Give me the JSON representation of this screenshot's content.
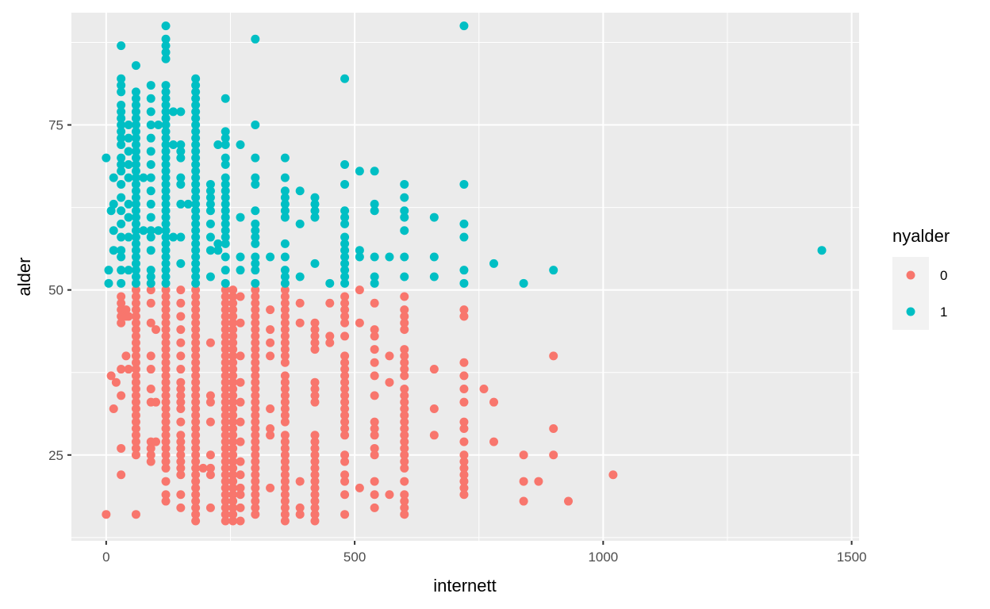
{
  "chart_data": {
    "type": "scatter",
    "title": "",
    "xlabel": "internett",
    "ylabel": "alder",
    "xlim": [
      -70,
      1515
    ],
    "ylim": [
      12,
      92
    ],
    "x_ticks": [
      0,
      500,
      1000,
      1500
    ],
    "y_ticks": [
      25,
      50,
      75
    ],
    "x_tick_labels": [
      "0",
      "500",
      "1000",
      "1500"
    ],
    "y_tick_labels": [
      "25",
      "50",
      "75"
    ],
    "grid": true,
    "legend": {
      "title": "nyalder",
      "position": "right",
      "entries": [
        {
          "label": "0",
          "color": "#F8766D"
        },
        {
          "label": "1",
          "color": "#00BFC4"
        }
      ]
    },
    "series": [
      {
        "name": "0",
        "color": "#F8766D",
        "columns": [
          [
            0,
            [
              16
            ]
          ],
          [
            10,
            [
              37
            ]
          ],
          [
            15,
            [
              32
            ]
          ],
          [
            20,
            [
              36
            ]
          ],
          [
            30,
            [
              22,
              26,
              34,
              38,
              45,
              46,
              47,
              48,
              49
            ]
          ],
          [
            40,
            [
              40,
              46,
              47
            ]
          ],
          [
            45,
            [
              38,
              46
            ]
          ],
          [
            60,
            [
              16,
              25,
              26,
              27,
              28,
              29,
              30,
              31,
              32,
              33,
              34,
              35,
              36,
              37,
              38,
              39,
              40,
              41,
              42,
              43,
              44,
              45,
              46,
              47,
              48,
              49,
              50
            ]
          ],
          [
            90,
            [
              24,
              25,
              26,
              27,
              33,
              35,
              38,
              40,
              45,
              48,
              50
            ]
          ],
          [
            100,
            [
              27,
              33,
              44
            ]
          ],
          [
            120,
            [
              18,
              19,
              21,
              23,
              24,
              25,
              26,
              27,
              28,
              29,
              30,
              31,
              32,
              33,
              34,
              35,
              36,
              37,
              38,
              39,
              40,
              41,
              42,
              43,
              44,
              45,
              46,
              47,
              48,
              49,
              50
            ]
          ],
          [
            150,
            [
              17,
              19,
              22,
              23,
              24,
              25,
              26,
              27,
              28,
              30,
              32,
              33,
              34,
              35,
              36,
              38,
              40,
              42,
              44,
              46,
              48,
              50
            ]
          ],
          [
            180,
            [
              15,
              16,
              17,
              18,
              19,
              20,
              21,
              22,
              23,
              24,
              25,
              26,
              27,
              28,
              29,
              30,
              31,
              32,
              33,
              34,
              35,
              36,
              37,
              38,
              39,
              40,
              41,
              42,
              43,
              44,
              45,
              46,
              47,
              48,
              49,
              50
            ]
          ],
          [
            195,
            [
              23
            ]
          ],
          [
            210,
            [
              17,
              22,
              23,
              25,
              30,
              33,
              34,
              42
            ]
          ],
          [
            240,
            [
              15,
              16,
              17,
              18,
              19,
              20,
              21,
              22,
              23,
              24,
              25,
              26,
              27,
              28,
              29,
              30,
              31,
              32,
              33,
              34,
              35,
              36,
              37,
              38,
              39,
              40,
              41,
              42,
              43,
              44,
              45,
              46,
              47,
              48,
              49,
              50
            ]
          ],
          [
            255,
            [
              15,
              16,
              17,
              18,
              19,
              20,
              21,
              22,
              23,
              24,
              25,
              26,
              27,
              28,
              29,
              30,
              31,
              32,
              33,
              34,
              35,
              36,
              37,
              38,
              39,
              40,
              41,
              42,
              43,
              44,
              45,
              46,
              47,
              48,
              49,
              50
            ]
          ],
          [
            270,
            [
              15,
              17,
              19,
              20,
              22,
              24,
              27,
              30,
              33,
              36,
              40,
              45,
              49
            ]
          ],
          [
            300,
            [
              16,
              17,
              18,
              19,
              20,
              21,
              22,
              23,
              24,
              25,
              26,
              27,
              28,
              29,
              30,
              31,
              32,
              33,
              34,
              35,
              36,
              37,
              38,
              39,
              40,
              41,
              42,
              43,
              44,
              45,
              46,
              47,
              48,
              49,
              50
            ]
          ],
          [
            330,
            [
              20,
              28,
              29,
              32,
              40,
              42,
              44,
              47
            ]
          ],
          [
            360,
            [
              15,
              16,
              17,
              18,
              19,
              20,
              21,
              22,
              23,
              24,
              25,
              26,
              27,
              28,
              30,
              31,
              32,
              33,
              34,
              35,
              36,
              37,
              39,
              40,
              41,
              42,
              43,
              44,
              45,
              46,
              47,
              48,
              49,
              50
            ]
          ],
          [
            390,
            [
              16,
              17,
              21,
              45,
              48
            ]
          ],
          [
            420,
            [
              15,
              16,
              17,
              18,
              19,
              20,
              21,
              22,
              23,
              24,
              25,
              26,
              27,
              28,
              33,
              34,
              35,
              36,
              41,
              42,
              43,
              44,
              45
            ]
          ],
          [
            450,
            [
              42,
              43,
              48
            ]
          ],
          [
            480,
            [
              16,
              19,
              21,
              22,
              24,
              25,
              28,
              29,
              30,
              31,
              32,
              33,
              34,
              35,
              36,
              37,
              38,
              39,
              40,
              43,
              45,
              46,
              47,
              48,
              49
            ]
          ],
          [
            510,
            [
              20,
              45,
              50
            ]
          ],
          [
            540,
            [
              17,
              19,
              21,
              25,
              26,
              28,
              29,
              30,
              34,
              37,
              39,
              41,
              43,
              44,
              48
            ]
          ],
          [
            570,
            [
              19,
              36,
              40
            ]
          ],
          [
            600,
            [
              16,
              17,
              18,
              19,
              21,
              23,
              24,
              25,
              26,
              27,
              28,
              29,
              30,
              31,
              32,
              33,
              34,
              35,
              37,
              38,
              39,
              40,
              41,
              44,
              45,
              46,
              47,
              49
            ]
          ],
          [
            660,
            [
              28,
              32,
              38
            ]
          ],
          [
            720,
            [
              19,
              20,
              21,
              22,
              23,
              24,
              25,
              27,
              29,
              30,
              33,
              35,
              37,
              39,
              46,
              47
            ]
          ],
          [
            760,
            [
              35
            ]
          ],
          [
            780,
            [
              27,
              33
            ]
          ],
          [
            840,
            [
              18,
              21,
              25
            ]
          ],
          [
            870,
            [
              21
            ]
          ],
          [
            900,
            [
              25,
              29,
              40
            ]
          ],
          [
            930,
            [
              18
            ]
          ],
          [
            1020,
            [
              22
            ]
          ]
        ]
      },
      {
        "name": "1",
        "color": "#00BFC4",
        "columns": [
          [
            0,
            [
              70
            ]
          ],
          [
            5,
            [
              51,
              53
            ]
          ],
          [
            10,
            [
              62
            ]
          ],
          [
            15,
            [
              56,
              59,
              63,
              67
            ]
          ],
          [
            30,
            [
              51,
              53,
              55,
              56,
              58,
              60,
              62,
              64,
              66,
              68,
              69,
              70,
              72,
              73,
              74,
              75,
              76,
              77,
              78,
              80,
              81,
              82,
              87
            ]
          ],
          [
            45,
            [
              53,
              58,
              61,
              63,
              67,
              69,
              71,
              73,
              75
            ]
          ],
          [
            60,
            [
              51,
              52,
              53,
              54,
              55,
              56,
              57,
              58,
              59,
              60,
              61,
              62,
              63,
              64,
              65,
              66,
              67,
              68,
              69,
              70,
              71,
              72,
              73,
              74,
              75,
              76,
              77,
              78,
              79,
              80,
              84
            ]
          ],
          [
            75,
            [
              59,
              67
            ]
          ],
          [
            90,
            [
              51,
              52,
              53,
              56,
              58,
              59,
              61,
              63,
              65,
              67,
              69,
              71,
              73,
              75,
              77,
              79,
              81
            ]
          ],
          [
            105,
            [
              59,
              75
            ]
          ],
          [
            120,
            [
              51,
              52,
              53,
              54,
              55,
              56,
              57,
              58,
              59,
              60,
              61,
              62,
              63,
              64,
              65,
              66,
              67,
              68,
              69,
              70,
              71,
              72,
              73,
              74,
              75,
              76,
              77,
              78,
              79,
              80,
              81,
              85,
              86,
              87,
              88,
              90
            ]
          ],
          [
            135,
            [
              58,
              72,
              77
            ]
          ],
          [
            150,
            [
              54,
              58,
              63,
              66,
              67,
              70,
              71,
              72,
              77
            ]
          ],
          [
            165,
            [
              63
            ]
          ],
          [
            180,
            [
              51,
              52,
              53,
              54,
              55,
              56,
              57,
              58,
              59,
              60,
              61,
              62,
              63,
              64,
              65,
              66,
              67,
              68,
              69,
              70,
              71,
              72,
              73,
              74,
              75,
              76,
              77,
              78,
              79,
              80,
              81,
              82
            ]
          ],
          [
            210,
            [
              52,
              56,
              58,
              60,
              62,
              63,
              64,
              65,
              66
            ]
          ],
          [
            225,
            [
              56,
              57,
              72
            ]
          ],
          [
            240,
            [
              51,
              53,
              55,
              57,
              58,
              59,
              60,
              61,
              62,
              63,
              64,
              65,
              66,
              67,
              69,
              70,
              72,
              73,
              74,
              79
            ]
          ],
          [
            270,
            [
              53,
              55,
              61,
              72
            ]
          ],
          [
            300,
            [
              51,
              53,
              54,
              55,
              57,
              58,
              59,
              60,
              62,
              66,
              67,
              70,
              75,
              88
            ]
          ],
          [
            330,
            [
              55
            ]
          ],
          [
            360,
            [
              51,
              52,
              53,
              55,
              57,
              61,
              62,
              63,
              64,
              65,
              67,
              70
            ]
          ],
          [
            390,
            [
              52,
              60,
              65
            ]
          ],
          [
            420,
            [
              54,
              61,
              62,
              63,
              64
            ]
          ],
          [
            450,
            [
              51
            ]
          ],
          [
            480,
            [
              51,
              52,
              53,
              54,
              55,
              56,
              57,
              58,
              60,
              61,
              62,
              66,
              69,
              82
            ]
          ],
          [
            510,
            [
              55,
              56,
              68
            ]
          ],
          [
            540,
            [
              51,
              52,
              55,
              62,
              63,
              68
            ]
          ],
          [
            570,
            [
              55
            ]
          ],
          [
            600,
            [
              52,
              55,
              59,
              61,
              62,
              64,
              66
            ]
          ],
          [
            660,
            [
              52,
              55,
              61
            ]
          ],
          [
            720,
            [
              51,
              53,
              58,
              60,
              66,
              90
            ]
          ],
          [
            780,
            [
              54
            ]
          ],
          [
            840,
            [
              51
            ]
          ],
          [
            900,
            [
              53
            ]
          ],
          [
            1440,
            [
              56
            ]
          ]
        ]
      }
    ]
  }
}
